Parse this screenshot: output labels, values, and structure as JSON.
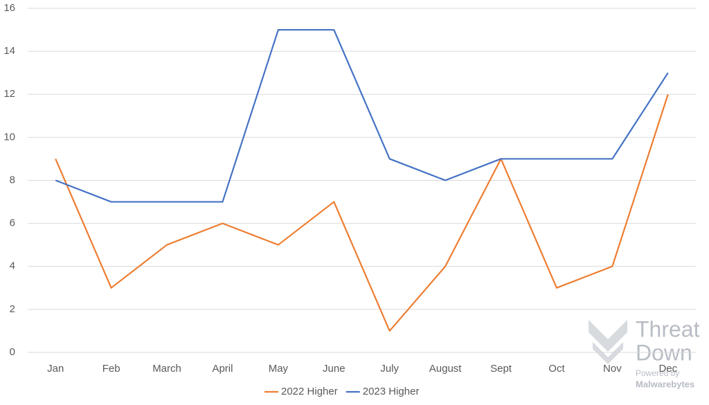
{
  "chart_data": {
    "type": "line",
    "categories": [
      "Jan",
      "Feb",
      "March",
      "April",
      "May",
      "June",
      "July",
      "August",
      "Sept",
      "Oct",
      "Nov",
      "Dec"
    ],
    "series": [
      {
        "name": "2022 Higher",
        "color": "#ed7d31",
        "values": [
          9,
          3,
          5,
          6,
          5,
          7,
          1,
          4,
          9,
          3,
          4,
          12
        ]
      },
      {
        "name": "2023 Higher",
        "color": "#4472c4",
        "values": [
          8,
          7,
          7,
          7,
          15,
          15,
          9,
          8,
          9,
          9,
          9,
          13
        ]
      }
    ],
    "ylim": [
      0,
      16
    ],
    "yticks": [
      0,
      2,
      4,
      6,
      8,
      10,
      12,
      14,
      16
    ],
    "grid": true,
    "legend": "bottom",
    "watermark": [
      "Threat",
      "Down",
      "Powered by",
      "Malwarebytes"
    ]
  }
}
